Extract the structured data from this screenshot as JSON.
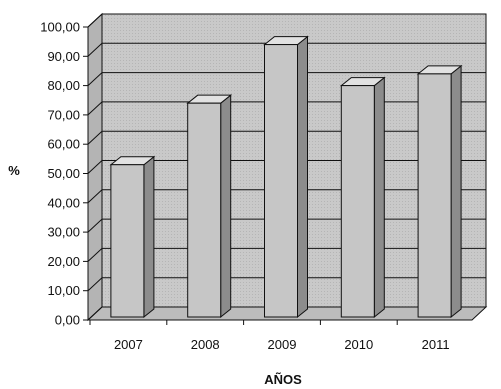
{
  "chart_data": {
    "type": "bar",
    "title": "",
    "xlabel": "AÑOS",
    "ylabel": "%",
    "categories": [
      "2007",
      "2008",
      "2009",
      "2010",
      "2011"
    ],
    "values": [
      53,
      74,
      94,
      80,
      84
    ],
    "ylim": [
      0,
      100
    ],
    "yticks": [
      "0,00",
      "10,00",
      "20,00",
      "30,00",
      "40,00",
      "50,00",
      "60,00",
      "70,00",
      "80,00",
      "90,00",
      "100,00"
    ],
    "grid": true,
    "style": "3d",
    "colors": {
      "background": "#ffffff",
      "plot_back": "#c9c9c9",
      "floor": "#bcbcbc",
      "bar_front": "#c6c6c6",
      "bar_top": "#e2e2e2",
      "bar_side": "#8c8c8c",
      "edge": "#111111"
    }
  }
}
